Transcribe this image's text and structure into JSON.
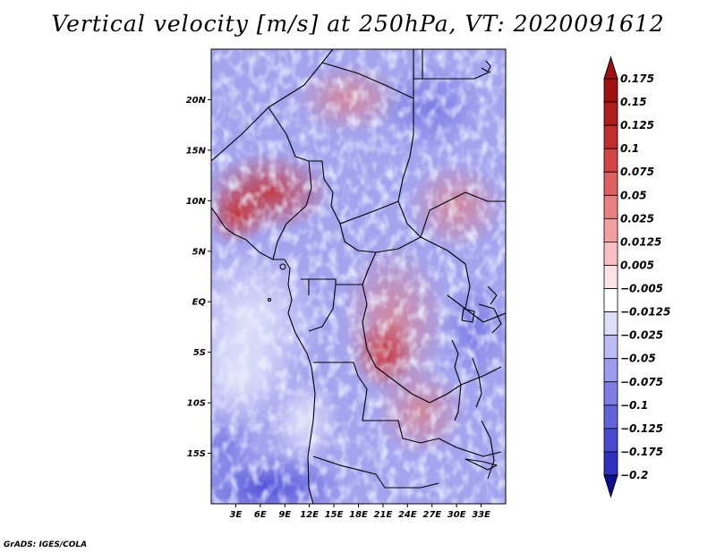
{
  "title": "Vertical velocity [m/s] at 250hPa, VT: 2020091612",
  "footer": "GrADS: IGES/COLA",
  "map": {
    "variable": "Vertical velocity",
    "units": "m/s",
    "level": "250hPa",
    "valid_time": "2020091612",
    "lon_range_deg": [
      0,
      36
    ],
    "lat_range_deg": [
      -20,
      25
    ],
    "lat_ticks": [
      {
        "value": 20,
        "label": "20N"
      },
      {
        "value": 15,
        "label": "15N"
      },
      {
        "value": 10,
        "label": "10N"
      },
      {
        "value": 5,
        "label": "5N"
      },
      {
        "value": 0,
        "label": "EQ"
      },
      {
        "value": -5,
        "label": "5S"
      },
      {
        "value": -10,
        "label": "10S"
      },
      {
        "value": -15,
        "label": "15S"
      }
    ],
    "lon_ticks": [
      {
        "value": 3,
        "label": "3E"
      },
      {
        "value": 6,
        "label": "6E"
      },
      {
        "value": 9,
        "label": "9E"
      },
      {
        "value": 12,
        "label": "12E"
      },
      {
        "value": 15,
        "label": "15E"
      },
      {
        "value": 18,
        "label": "18E"
      },
      {
        "value": 21,
        "label": "21E"
      },
      {
        "value": 24,
        "label": "24E"
      },
      {
        "value": 27,
        "label": "27E"
      },
      {
        "value": 30,
        "label": "30E"
      },
      {
        "value": 33,
        "label": "33E"
      }
    ]
  },
  "colorbar": {
    "levels": [
      {
        "label": "0.175",
        "color": "#a01010"
      },
      {
        "label": "0.15",
        "color": "#b11c1c"
      },
      {
        "label": "0.125",
        "color": "#c22c2c"
      },
      {
        "label": "0.1",
        "color": "#d34444"
      },
      {
        "label": "0.075",
        "color": "#e06060"
      },
      {
        "label": "0.05",
        "color": "#ea8080"
      },
      {
        "label": "0.025",
        "color": "#f2a0a0"
      },
      {
        "label": "0.0125",
        "color": "#f8c0c0"
      },
      {
        "label": "0.005",
        "color": "#fce2e2"
      },
      {
        "label": "−0.005",
        "color": "#ffffff"
      },
      {
        "label": "−0.0125",
        "color": "#dedefa"
      },
      {
        "label": "−0.025",
        "color": "#bcbcf4"
      },
      {
        "label": "−0.05",
        "color": "#9c9cee"
      },
      {
        "label": "−0.075",
        "color": "#7e7ee6"
      },
      {
        "label": "−0.1",
        "color": "#6262dc"
      },
      {
        "label": "−0.125",
        "color": "#4848d0"
      },
      {
        "label": "−0.175",
        "color": "#3030c0"
      },
      {
        "label": "−0.2",
        "color": "#1c1caa"
      }
    ],
    "top_arrow_color": "#a01010",
    "bottom_arrow_color": "#0e0e90"
  }
}
